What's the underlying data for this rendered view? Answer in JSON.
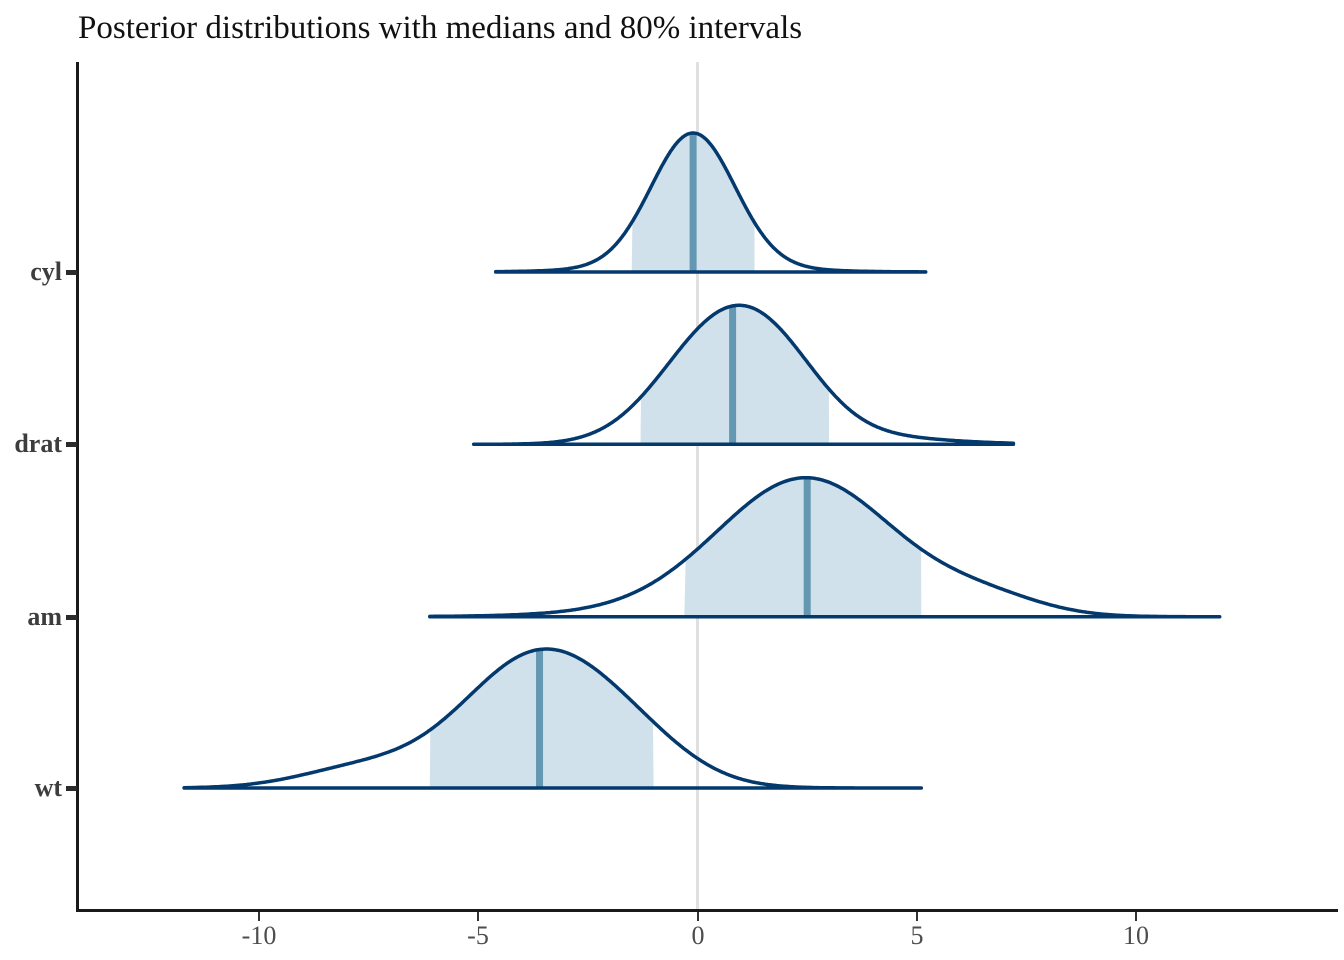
{
  "title": "Posterior distributions with medians and 80% intervals",
  "chart_data": {
    "type": "area",
    "variant": "posterior-density-ridges (mcmc_areas)",
    "title": "Posterior distributions with medians and 80% intervals",
    "point_estimate": "median",
    "interval_level": "80%",
    "x_axis": {
      "tick_values": [
        -10,
        -5,
        0,
        5,
        10
      ],
      "tick_labels": [
        "-10",
        "-5",
        "0",
        "5",
        "10"
      ],
      "range": [
        -14.1,
        14.6
      ],
      "grid": "zero-line-only"
    },
    "zero_reference_line": 0,
    "series": [
      {
        "label": "cyl",
        "median": -0.1,
        "interval_80": [
          -1.5,
          1.3
        ],
        "x_range": [
          -4.6,
          5.2
        ],
        "shape_components": [
          {
            "mean": -0.1,
            "sd": 0.95,
            "weight": 0.92
          },
          {
            "mean": -0.1,
            "sd": 1.9,
            "weight": 0.08
          }
        ]
      },
      {
        "label": "drat",
        "median": 0.8,
        "interval_80": [
          -1.3,
          3.0
        ],
        "x_range": [
          -5.1,
          7.2
        ],
        "shape_components": [
          {
            "mean": 0.5,
            "sd": 1.35,
            "weight": 0.7
          },
          {
            "mean": 1.9,
            "sd": 1.1,
            "weight": 0.22
          },
          {
            "mean": 3.3,
            "sd": 1.9,
            "weight": 0.08
          }
        ]
      },
      {
        "label": "am",
        "median": 2.5,
        "interval_80": [
          -0.3,
          5.1
        ],
        "x_range": [
          -6.1,
          11.9
        ],
        "shape_components": [
          {
            "mean": 2.5,
            "sd": 2.0,
            "weight": 0.88
          },
          {
            "mean": 6.6,
            "sd": 1.3,
            "weight": 0.07
          },
          {
            "mean": 0.2,
            "sd": 2.6,
            "weight": 0.05
          }
        ]
      },
      {
        "label": "wt",
        "median": -3.6,
        "interval_80": [
          -6.1,
          -1.0
        ],
        "x_range": [
          -11.7,
          5.1
        ],
        "shape_components": [
          {
            "mean": -3.6,
            "sd": 1.75,
            "weight": 0.81
          },
          {
            "mean": -7.7,
            "sd": 1.4,
            "weight": 0.09
          },
          {
            "mean": -1.3,
            "sd": 1.3,
            "weight": 0.1
          }
        ]
      }
    ],
    "colors": {
      "outline": "#03396c",
      "fill": "#d1e1ec",
      "median": "#6497b1",
      "zero_line": "#e0e0e0",
      "axis": "#1a1a1a",
      "tick_label": "#4d4d4d",
      "y_label": "#3d3d3d"
    }
  }
}
